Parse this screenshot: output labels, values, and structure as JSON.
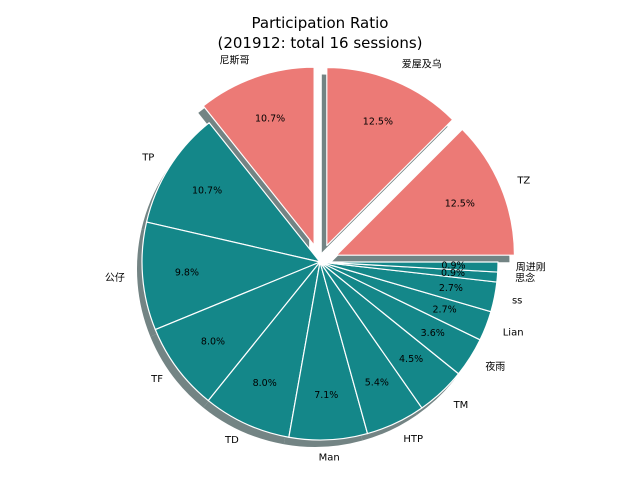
{
  "chart_data": {
    "type": "pie",
    "title_line1": "Participation Ratio",
    "title_line2": "(201912: total 16 sessions)",
    "slices": [
      {
        "label": "TZ",
        "value": 12.5,
        "pct": "12.5%",
        "color": "#ec7a76",
        "explode": true
      },
      {
        "label": "爱屋及乌",
        "value": 12.5,
        "pct": "12.5%",
        "color": "#ec7a76",
        "explode": true
      },
      {
        "label": "尼斯哥",
        "value": 10.7,
        "pct": "10.7%",
        "color": "#ec7a76",
        "explode": true
      },
      {
        "label": "TP",
        "value": 10.7,
        "pct": "10.7%",
        "color": "#148789",
        "explode": false
      },
      {
        "label": "公仔",
        "value": 9.8,
        "pct": "9.8%",
        "color": "#148789",
        "explode": false
      },
      {
        "label": "TF",
        "value": 8.0,
        "pct": "8.0%",
        "color": "#148789",
        "explode": false
      },
      {
        "label": "TD",
        "value": 8.0,
        "pct": "8.0%",
        "color": "#148789",
        "explode": false
      },
      {
        "label": "Man",
        "value": 7.1,
        "pct": "7.1%",
        "color": "#148789",
        "explode": false
      },
      {
        "label": "HTP",
        "value": 5.4,
        "pct": "5.4%",
        "color": "#148789",
        "explode": false
      },
      {
        "label": "TM",
        "value": 4.5,
        "pct": "4.5%",
        "color": "#148789",
        "explode": false
      },
      {
        "label": "夜雨",
        "value": 3.6,
        "pct": "3.6%",
        "color": "#148789",
        "explode": false
      },
      {
        "label": "Lian",
        "value": 2.7,
        "pct": "2.7%",
        "color": "#148789",
        "explode": false
      },
      {
        "label": "ss",
        "value": 2.7,
        "pct": "2.7%",
        "color": "#148789",
        "explode": false
      },
      {
        "label": "思念",
        "value": 0.9,
        "pct": "0.9%",
        "color": "#148789",
        "explode": false
      },
      {
        "label": "周进刚",
        "value": 0.9,
        "pct": "0.9%",
        "color": "#148789",
        "explode": false
      }
    ],
    "start_angle_deg": 0,
    "direction": "counterclockwise",
    "shadow": true
  }
}
